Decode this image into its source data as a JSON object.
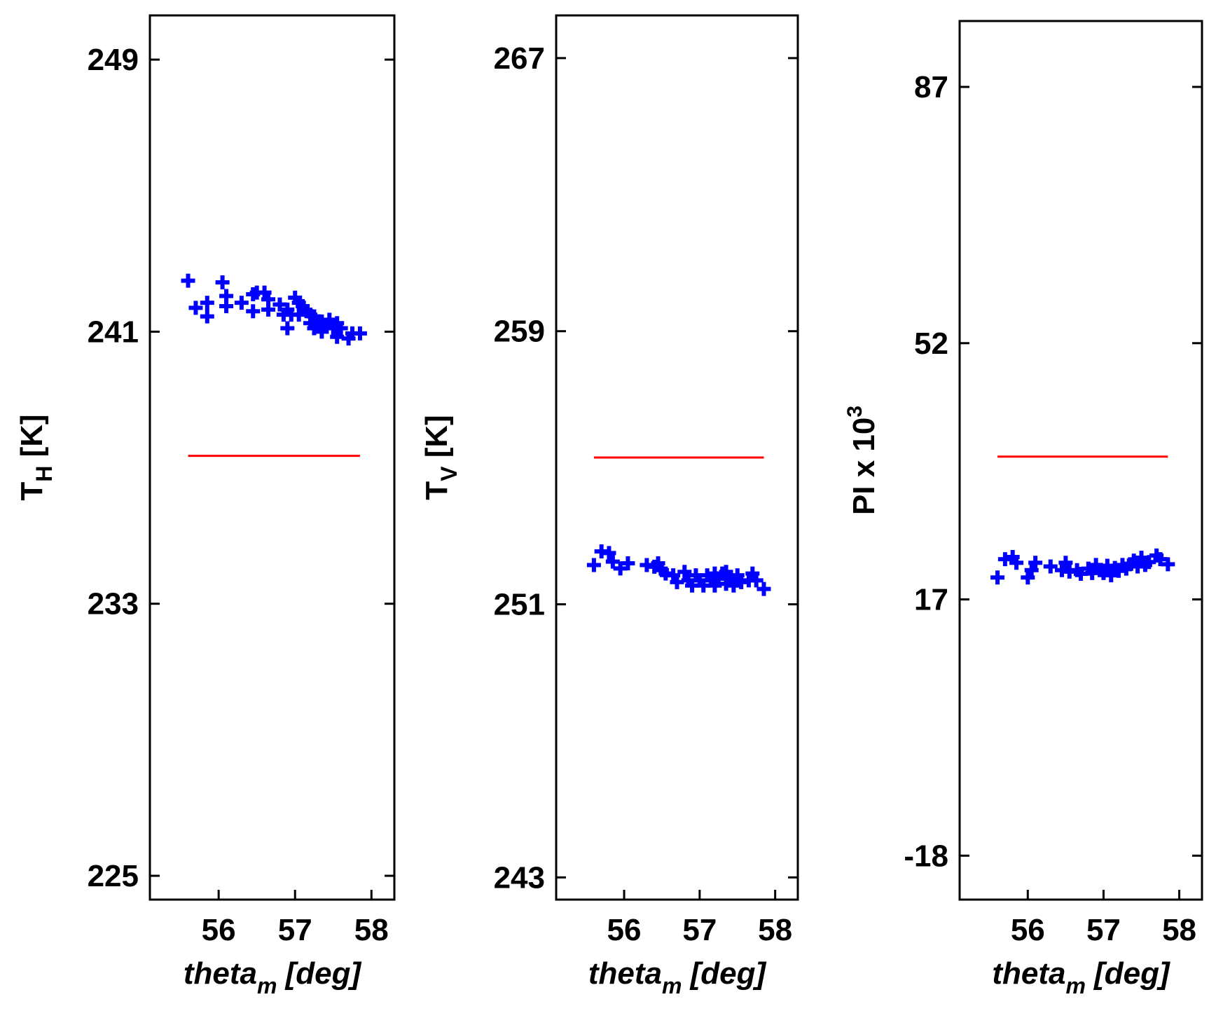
{
  "colors": {
    "series_points": "#0000ff",
    "reference_line": "#ff0000",
    "axes": "#000000"
  },
  "chart_data": [
    {
      "type": "scatter",
      "xlabel": {
        "main": "theta",
        "sub": "m",
        "rest": " [deg]"
      },
      "ylabel": {
        "main": "T",
        "sub": "H",
        "rest": " [K]"
      },
      "xlim": [
        55.1,
        58.3
      ],
      "ylim": [
        224.3,
        250.3
      ],
      "xticks": [
        56,
        57,
        58
      ],
      "yticks": [
        225,
        233,
        241,
        249
      ],
      "reference_line": {
        "x": [
          55.6,
          57.85
        ],
        "y": 237.35
      },
      "points": [
        [
          55.6,
          242.5
        ],
        [
          55.7,
          241.7
        ],
        [
          55.85,
          241.85
        ],
        [
          55.85,
          241.45
        ],
        [
          56.05,
          242.45
        ],
        [
          56.1,
          242.05
        ],
        [
          56.1,
          241.75
        ],
        [
          56.3,
          241.85
        ],
        [
          56.45,
          242.1
        ],
        [
          56.5,
          242.15
        ],
        [
          56.45,
          241.6
        ],
        [
          56.6,
          242.15
        ],
        [
          56.65,
          241.95
        ],
        [
          56.65,
          241.65
        ],
        [
          56.8,
          241.8
        ],
        [
          56.85,
          241.5
        ],
        [
          56.9,
          241.65
        ],
        [
          56.9,
          241.1
        ],
        [
          56.95,
          241.5
        ],
        [
          57.0,
          242.0
        ],
        [
          57.05,
          241.85
        ],
        [
          57.05,
          241.5
        ],
        [
          57.1,
          241.75
        ],
        [
          57.15,
          241.6
        ],
        [
          57.2,
          241.5
        ],
        [
          57.2,
          241.25
        ],
        [
          57.25,
          241.45
        ],
        [
          57.25,
          241.1
        ],
        [
          57.3,
          241.3
        ],
        [
          57.35,
          241.0
        ],
        [
          57.35,
          241.3
        ],
        [
          57.4,
          241.15
        ],
        [
          57.45,
          241.35
        ],
        [
          57.5,
          241.1
        ],
        [
          57.55,
          240.85
        ],
        [
          57.55,
          241.25
        ],
        [
          57.6,
          241.1
        ],
        [
          57.7,
          240.8
        ],
        [
          57.75,
          240.95
        ],
        [
          57.85,
          240.95
        ]
      ]
    },
    {
      "type": "scatter",
      "xlabel": {
        "main": "theta",
        "sub": "m",
        "rest": " [deg]"
      },
      "ylabel": {
        "main": "T",
        "sub": "V",
        "rest": " [K]"
      },
      "xlim": [
        55.1,
        58.3
      ],
      "ylim": [
        242.35,
        268.25
      ],
      "xticks": [
        56,
        57,
        58
      ],
      "yticks": [
        243,
        251,
        259,
        267
      ],
      "reference_line": {
        "x": [
          55.6,
          57.85
        ],
        "y": 255.3
      },
      "points": [
        [
          55.6,
          252.15
        ],
        [
          55.7,
          252.55
        ],
        [
          55.8,
          252.5
        ],
        [
          55.85,
          252.25
        ],
        [
          55.95,
          252.05
        ],
        [
          56.05,
          252.2
        ],
        [
          56.3,
          252.15
        ],
        [
          56.4,
          252.1
        ],
        [
          56.45,
          252.2
        ],
        [
          56.5,
          252.0
        ],
        [
          56.55,
          251.9
        ],
        [
          56.65,
          251.85
        ],
        [
          56.7,
          251.65
        ],
        [
          56.8,
          251.95
        ],
        [
          56.85,
          251.7
        ],
        [
          56.9,
          251.55
        ],
        [
          56.95,
          251.85
        ],
        [
          57.0,
          251.7
        ],
        [
          57.05,
          251.55
        ],
        [
          57.1,
          251.85
        ],
        [
          57.15,
          251.7
        ],
        [
          57.2,
          251.55
        ],
        [
          57.2,
          251.9
        ],
        [
          57.25,
          251.75
        ],
        [
          57.3,
          251.9
        ],
        [
          57.35,
          251.6
        ],
        [
          57.35,
          251.95
        ],
        [
          57.4,
          251.75
        ],
        [
          57.45,
          251.55
        ],
        [
          57.5,
          251.85
        ],
        [
          57.55,
          251.65
        ],
        [
          57.65,
          251.7
        ],
        [
          57.7,
          251.9
        ],
        [
          57.75,
          251.7
        ],
        [
          57.85,
          251.45
        ]
      ]
    },
    {
      "type": "scatter",
      "xlabel": {
        "main": "theta",
        "sub": "m",
        "rest": " [deg]"
      },
      "ylabel": {
        "main": "PI x 10",
        "sup": "3",
        "rest": ""
      },
      "xlim": [
        55.1,
        58.3
      ],
      "ylim": [
        -24,
        96
      ],
      "xticks": [
        56,
        57,
        58
      ],
      "yticks": [
        -18,
        17,
        52,
        87
      ],
      "reference_line": {
        "x": [
          55.6,
          57.85
        ],
        "y": 36.5
      },
      "points": [
        [
          55.6,
          20.0
        ],
        [
          55.7,
          22.5
        ],
        [
          55.8,
          22.8
        ],
        [
          55.85,
          22.0
        ],
        [
          56.0,
          20.0
        ],
        [
          56.05,
          21.0
        ],
        [
          56.1,
          22.0
        ],
        [
          56.3,
          21.5
        ],
        [
          56.45,
          21.0
        ],
        [
          56.5,
          22.0
        ],
        [
          56.55,
          20.8
        ],
        [
          56.65,
          21.0
        ],
        [
          56.7,
          20.5
        ],
        [
          56.8,
          21.2
        ],
        [
          56.85,
          20.6
        ],
        [
          56.9,
          21.7
        ],
        [
          56.95,
          21.0
        ],
        [
          57.0,
          20.6
        ],
        [
          57.05,
          21.6
        ],
        [
          57.1,
          20.3
        ],
        [
          57.15,
          21.3
        ],
        [
          57.2,
          20.9
        ],
        [
          57.25,
          21.7
        ],
        [
          57.3,
          21.2
        ],
        [
          57.35,
          21.8
        ],
        [
          57.4,
          22.3
        ],
        [
          57.45,
          21.5
        ],
        [
          57.5,
          22.7
        ],
        [
          57.55,
          21.7
        ],
        [
          57.6,
          22.1
        ],
        [
          57.7,
          23.0
        ],
        [
          57.75,
          22.5
        ],
        [
          57.85,
          21.8
        ]
      ]
    }
  ]
}
